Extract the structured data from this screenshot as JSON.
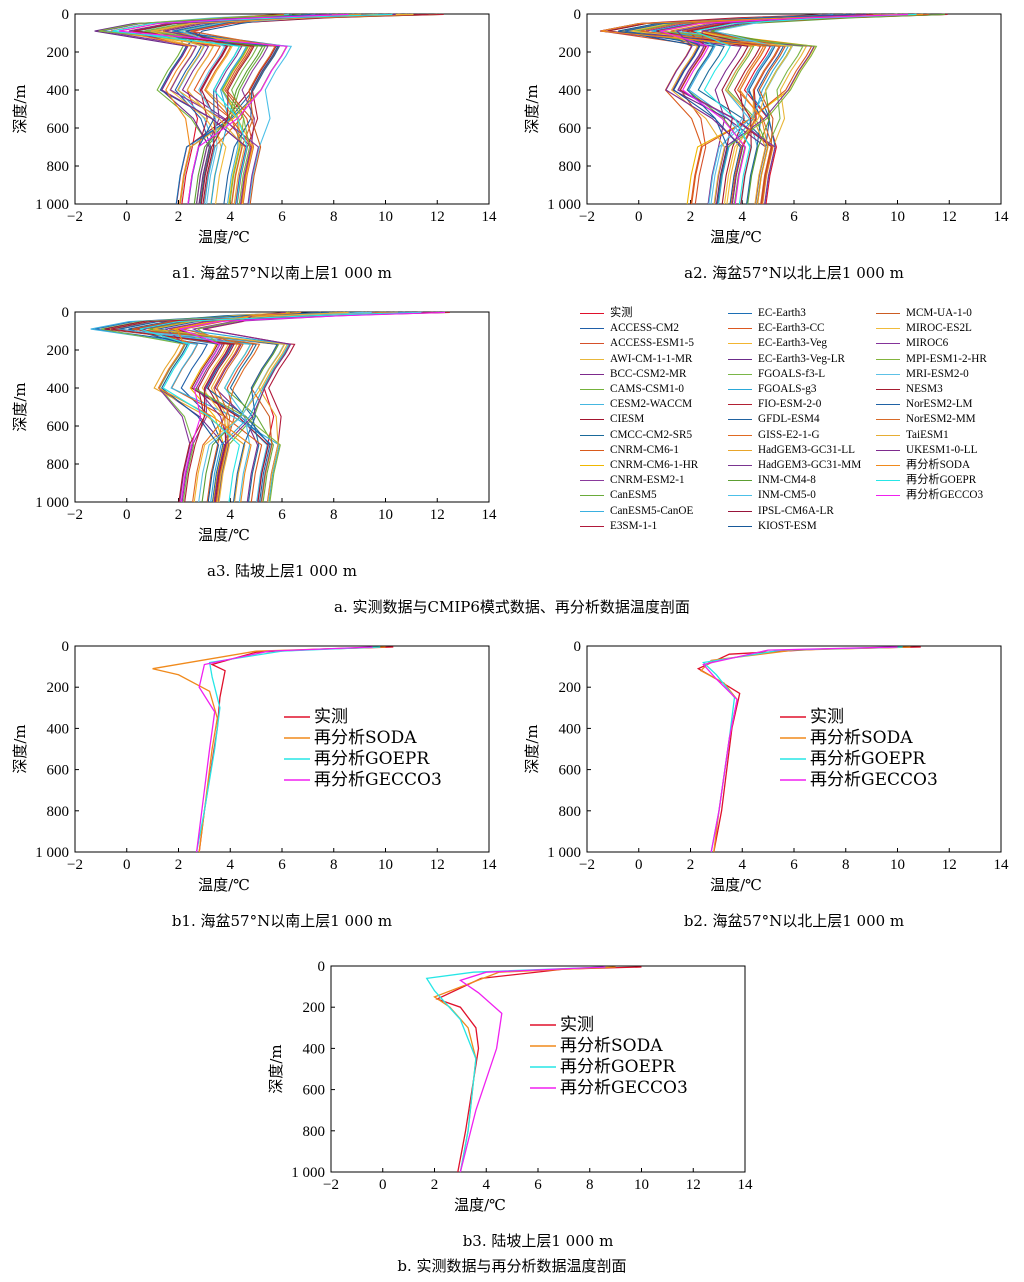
{
  "figure_a_caption": "a. 实测数据与CMIP6模式数据、再分析数据温度剖面",
  "figure_b_caption": "b. 实测数据与再分析数据温度剖面",
  "axis_labels": {
    "x": "温度/℃",
    "y": "深度/m"
  },
  "x_ticks": [
    "−2",
    "0",
    "2",
    "4",
    "6",
    "8",
    "10",
    "12",
    "14"
  ],
  "y_ticks": [
    "0",
    "200",
    "400",
    "600",
    "800",
    "1 000"
  ],
  "panels": {
    "a1": {
      "caption": "a1. 海盆57°N以南上层1 000 m"
    },
    "a2": {
      "caption": "a2. 海盆57°N以北上层1 000 m"
    },
    "a3": {
      "caption": "a3. 陆坡上层1 000 m"
    },
    "b1": {
      "caption": "b1. 海盆57°N以南上层1 000 m"
    },
    "b2": {
      "caption": "b2. 海盆57°N以北上层1 000 m"
    },
    "b3": {
      "caption": "b3. 陆坡上层1 000 m"
    }
  },
  "legend_a": [
    {
      "label": "实测",
      "color": "#e0102b"
    },
    {
      "label": "ACCESS-CM2",
      "color": "#1f5fa8"
    },
    {
      "label": "ACCESS-ESM1-5",
      "color": "#d6502a"
    },
    {
      "label": "AWI-CM-1-1-MR",
      "color": "#e8b73a"
    },
    {
      "label": "BCC-CSM2-MR",
      "color": "#7d2a8c"
    },
    {
      "label": "CAMS-CSM1-0",
      "color": "#74b23a"
    },
    {
      "label": "CESM2-WACCM",
      "color": "#45b7e0"
    },
    {
      "label": "CIESM",
      "color": "#a3142e"
    },
    {
      "label": "CMCC-CM2-SR5",
      "color": "#1a6a9a"
    },
    {
      "label": "CNRM-CM6-1",
      "color": "#d95a1c"
    },
    {
      "label": "CNRM-CM6-1-HR",
      "color": "#f0b800"
    },
    {
      "label": "CNRM-ESM2-1",
      "color": "#8a3a9c"
    },
    {
      "label": "CanESM5",
      "color": "#6aab3a"
    },
    {
      "label": "CanESM5-CanOE",
      "color": "#3ab0e0"
    },
    {
      "label": "E3SM-1-1",
      "color": "#b0183a"
    },
    {
      "label": "EC-Earth3",
      "color": "#1c6fb5"
    },
    {
      "label": "EC-Earth3-CC",
      "color": "#dc5820"
    },
    {
      "label": "EC-Earth3-Veg",
      "color": "#f2b530"
    },
    {
      "label": "EC-Earth3-Veg-LR",
      "color": "#6b2b8a"
    },
    {
      "label": "FGOALS-f3-L",
      "color": "#7ab648"
    },
    {
      "label": "FGOALS-g3",
      "color": "#2aa8d8"
    },
    {
      "label": "FIO-ESM-2-0",
      "color": "#b22033"
    },
    {
      "label": "GFDL-ESM4",
      "color": "#2062a0"
    },
    {
      "label": "GISS-E2-1-G",
      "color": "#e06a22"
    },
    {
      "label": "HadGEM3-GC31-LL",
      "color": "#e8a52a"
    },
    {
      "label": "HadGEM3-GC31-MM",
      "color": "#7a3590"
    },
    {
      "label": "INM-CM4-8",
      "color": "#5c9e32"
    },
    {
      "label": "INM-CM5-0",
      "color": "#4cc0e8"
    },
    {
      "label": "IPSL-CM6A-LR",
      "color": "#98143a"
    },
    {
      "label": "KIOST-ESM",
      "color": "#17599a"
    },
    {
      "label": "MCM-UA-1-0",
      "color": "#cc5c22"
    },
    {
      "label": "MIROC-ES2L",
      "color": "#f0bb3a"
    },
    {
      "label": "MIROC6",
      "color": "#84339a"
    },
    {
      "label": "MPI-ESM1-2-HR",
      "color": "#82b43c"
    },
    {
      "label": "MRI-ESM2-0",
      "color": "#5dc1e6"
    },
    {
      "label": "NESM3",
      "color": "#a61c30"
    },
    {
      "label": "NorESM2-LM",
      "color": "#1f62a5"
    },
    {
      "label": "NorESM2-MM",
      "color": "#d86a28"
    },
    {
      "label": "TaiESM1",
      "color": "#e6ad33"
    },
    {
      "label": "UKESM1-0-LL",
      "color": "#7e2b8e"
    },
    {
      "label": "再分析SODA",
      "color": "#f08a1c"
    },
    {
      "label": "再分析GOEPR",
      "color": "#26e6e6"
    },
    {
      "label": "再分析GECCO3",
      "color": "#f020f0"
    }
  ],
  "legend_b": [
    {
      "label": "实测",
      "color": "#e0102b"
    },
    {
      "label": "再分析SODA",
      "color": "#f08a1c"
    },
    {
      "label": "再分析GOEPR",
      "color": "#26e6e6"
    },
    {
      "label": "再分析GECCO3",
      "color": "#f020f0"
    }
  ],
  "chart_data": [
    {
      "id": "b1",
      "type": "line",
      "caption": "b1. 海盆57°N以南上层1 000 m",
      "xlabel": "温度/℃",
      "ylabel": "深度/m",
      "xlim": [
        -2,
        14
      ],
      "ylim": [
        1000,
        0
      ],
      "series": [
        {
          "name": "实测",
          "color": "#e0102b",
          "x": [
            10.3,
            7.5,
            5.0,
            3.3,
            3.8,
            3.6,
            3.5,
            3.0,
            2.8
          ],
          "y": [
            5,
            15,
            30,
            90,
            120,
            250,
            400,
            800,
            1000
          ]
        },
        {
          "name": "再分析SODA",
          "color": "#f08a1c",
          "x": [
            10.0,
            5.0,
            1.0,
            2.0,
            3.2,
            3.5,
            3.3,
            3.0,
            2.8
          ],
          "y": [
            5,
            25,
            110,
            140,
            220,
            350,
            500,
            800,
            1000
          ]
        },
        {
          "name": "再分析GOEPR",
          "color": "#26e6e6",
          "x": [
            9.8,
            6.0,
            3.2,
            3.3,
            3.6,
            3.4,
            3.0,
            2.7
          ],
          "y": [
            5,
            25,
            80,
            150,
            300,
            500,
            800,
            1000
          ]
        },
        {
          "name": "再分析GECCO3",
          "color": "#f020f0",
          "x": [
            9.5,
            5.5,
            3.0,
            2.8,
            3.4,
            3.2,
            2.9,
            2.7
          ],
          "y": [
            5,
            25,
            90,
            200,
            320,
            500,
            800,
            1000
          ]
        }
      ]
    },
    {
      "id": "b2",
      "type": "line",
      "caption": "b2. 海盆57°N以北上层1 000 m",
      "xlabel": "温度/℃",
      "ylabel": "深度/m",
      "xlim": [
        -2,
        14
      ],
      "ylim": [
        1000,
        0
      ],
      "series": [
        {
          "name": "实测",
          "color": "#e0102b",
          "x": [
            10.9,
            7.0,
            3.5,
            2.3,
            3.0,
            3.9,
            3.6,
            3.2,
            2.9
          ],
          "y": [
            5,
            15,
            40,
            110,
            160,
            230,
            400,
            800,
            1000
          ]
        },
        {
          "name": "再分析SODA",
          "color": "#f08a1c",
          "x": [
            10.5,
            6.0,
            2.8,
            2.4,
            3.3,
            3.8,
            3.5,
            3.1,
            2.9
          ],
          "y": [
            5,
            20,
            70,
            120,
            180,
            260,
            450,
            800,
            1000
          ]
        },
        {
          "name": "再分析GOEPR",
          "color": "#26e6e6",
          "x": [
            10.2,
            5.5,
            2.5,
            3.0,
            3.7,
            3.5,
            3.1,
            2.8
          ],
          "y": [
            5,
            20,
            80,
            140,
            250,
            450,
            800,
            1000
          ]
        },
        {
          "name": "再分析GECCO3",
          "color": "#f020f0",
          "x": [
            10.0,
            5.0,
            2.5,
            3.0,
            3.8,
            3.5,
            3.1,
            2.8
          ],
          "y": [
            5,
            20,
            90,
            160,
            260,
            450,
            800,
            1000
          ]
        }
      ]
    },
    {
      "id": "b3",
      "type": "line",
      "caption": "b3. 陆坡上层1 000 m",
      "xlabel": "温度/℃",
      "ylabel": "深度/m",
      "xlim": [
        -2,
        14
      ],
      "ylim": [
        1000,
        0
      ],
      "series": [
        {
          "name": "实测",
          "color": "#e0102b",
          "x": [
            10.0,
            7.0,
            3.8,
            2.1,
            3.0,
            3.6,
            3.7,
            3.2,
            2.9
          ],
          "y": [
            5,
            15,
            60,
            160,
            200,
            300,
            400,
            800,
            1000
          ]
        },
        {
          "name": "再分析SODA",
          "color": "#f08a1c",
          "x": [
            9.0,
            4.5,
            2.0,
            2.6,
            3.3,
            3.6,
            3.3,
            3.0
          ],
          "y": [
            5,
            30,
            150,
            200,
            300,
            450,
            800,
            1000
          ]
        },
        {
          "name": "再分析GOEPR",
          "color": "#26e6e6",
          "x": [
            8.6,
            3.5,
            1.7,
            2.0,
            3.0,
            3.6,
            3.3,
            3.0
          ],
          "y": [
            5,
            30,
            60,
            120,
            260,
            450,
            800,
            1000
          ]
        },
        {
          "name": "再分析GECCO3",
          "color": "#f020f0",
          "x": [
            8.6,
            4.0,
            3.0,
            3.7,
            4.6,
            4.4,
            3.6,
            3.0
          ],
          "y": [
            5,
            30,
            70,
            130,
            230,
            400,
            700,
            1000
          ]
        }
      ]
    }
  ]
}
